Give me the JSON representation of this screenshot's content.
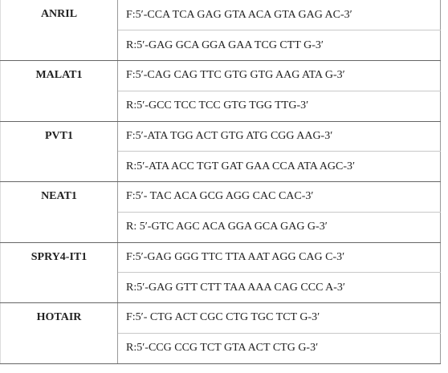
{
  "table": {
    "rows": [
      {
        "gene": "ANRIL",
        "forward": "F:5′-CCA TCA GAG GTA ACA GTA GAG AC-3′",
        "reverse": "R:5′-GAG GCA GGA GAA TCG CTT G-3′"
      },
      {
        "gene": "MALAT1",
        "forward": "F:5′-CAG CAG TTC GTG GTG AAG ATA G-3′",
        "reverse": "R:5′-GCC TCC TCC GTG TGG TTG-3′"
      },
      {
        "gene": "PVT1",
        "forward": "F:5′-ATA TGG ACT GTG ATG CGG AAG-3′",
        "reverse": "R:5′-ATA ACC TGT GAT GAA CCA ATA AGC-3′"
      },
      {
        "gene": "NEAT1",
        "forward": "F:5′- TAC ACA GCG AGG CAC CAC-3′",
        "reverse": "R: 5′-GTC AGC ACA GGA GCA GAG G-3′"
      },
      {
        "gene": "SPRY4-IT1",
        "forward": "F:5′-GAG GGG TTC TTA AAT AGG CAG C-3′",
        "reverse": "R:5′-GAG GTT CTT TAA AAA CAG CCC A-3′"
      },
      {
        "gene": "HOTAIR",
        "forward": "F:5′- CTG ACT CGC CTG TGC TCT G-3′",
        "reverse": "R:5′-CCG CCG TCT GTA ACT CTG G-3′"
      }
    ]
  }
}
